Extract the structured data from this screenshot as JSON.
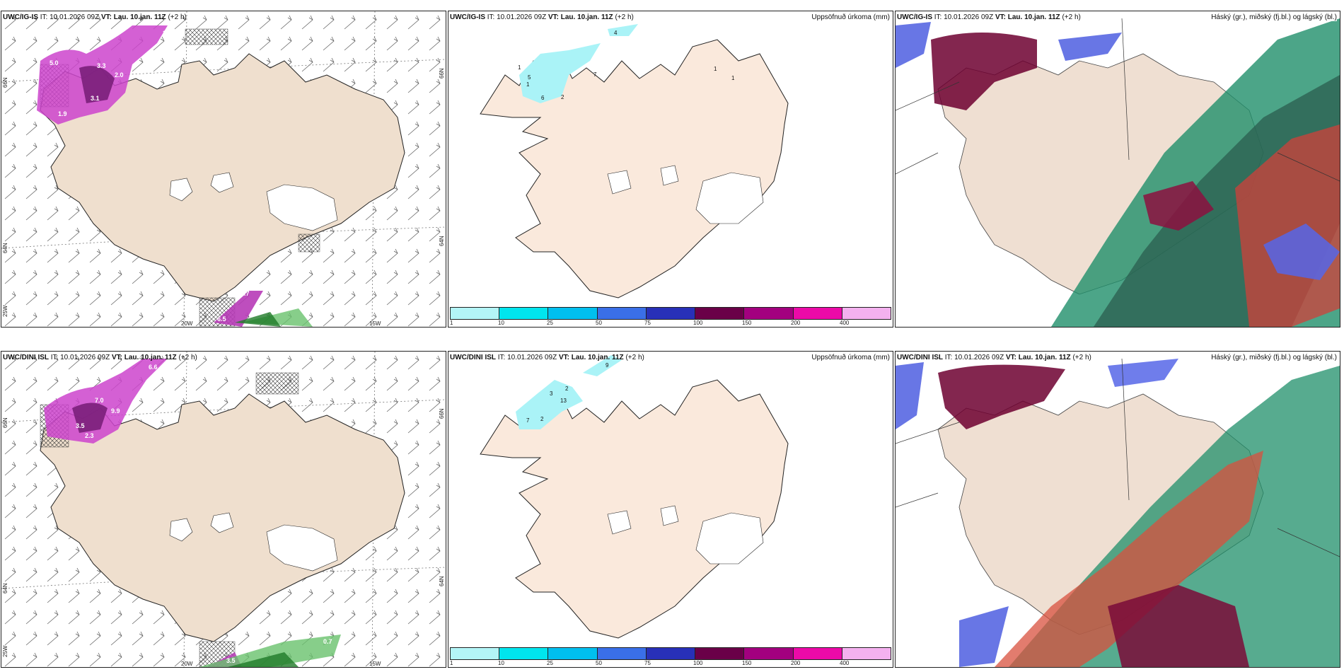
{
  "rows": [
    {
      "model": "UWC/IG-IS",
      "precip_labels": [
        "4",
        "1",
        "7",
        "1",
        "5",
        "6",
        "2",
        "1",
        "1"
      ],
      "wind_labels": [
        "3.8",
        "5.0",
        "2.0",
        "3.1",
        "1.9",
        "3.3",
        "6.5",
        "2.7"
      ]
    },
    {
      "model": "UWC/DINI ISL",
      "precip_labels": [
        "9",
        "3",
        "13",
        "7",
        "2",
        "2",
        "1"
      ],
      "wind_labels": [
        "6.6",
        "7.0",
        "3.5",
        "2.3",
        "9.9",
        "0.7",
        "3.5"
      ]
    }
  ],
  "it_label": "IT: 10.01.2026 09Z",
  "vt_label": "VT: Lau. 10.jan. 11Z",
  "lead": "(+2 h)",
  "precip_title": "Uppsöfnuð úrkoma (mm)",
  "cloud_title": "Háský (gr.), miðský (fj.bl.) og lágský (bl.)",
  "lat_labels": [
    "66N",
    "64N",
    "25W"
  ],
  "lat_labels_right": [
    "66N",
    "64N"
  ],
  "lon_labels": [
    "20W",
    "15W"
  ],
  "colorbar": {
    "labels": [
      "1",
      "10",
      "25",
      "50",
      "75",
      "100",
      "150",
      "200",
      "400"
    ],
    "colors": [
      "#b3f5f7",
      "#00e5ee",
      "#00bfef",
      "#3a6fe8",
      "#2830b8",
      "#6a0048",
      "#a3007f",
      "#ec0aa8",
      "#f4b1ef"
    ]
  }
}
